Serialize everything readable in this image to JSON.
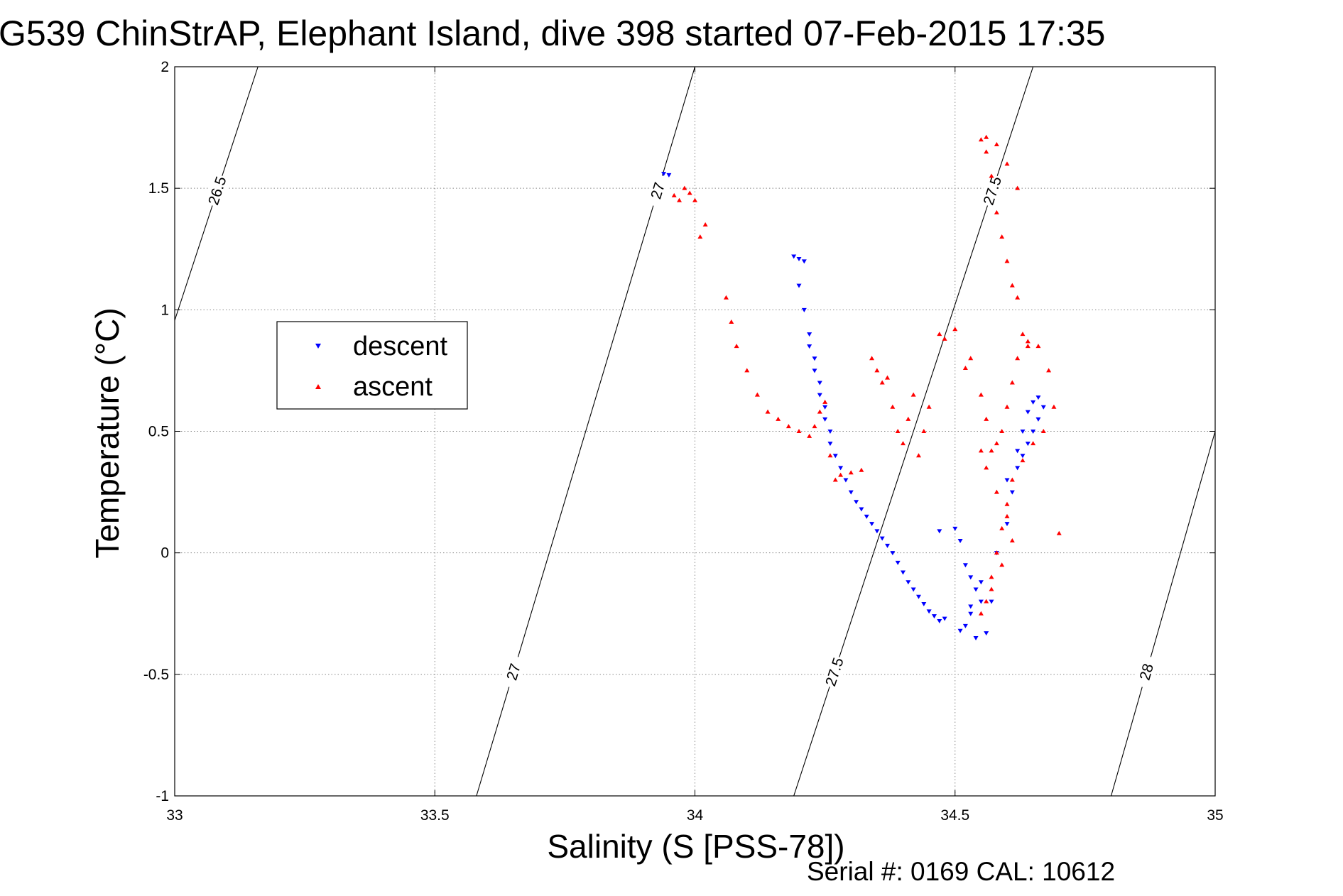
{
  "title": "G539 ChinStrAP, Elephant Island, dive 398 started 07-Feb-2015 17:35",
  "footer": "Serial #: 0169 CAL: 10612",
  "chart_data": {
    "type": "scatter",
    "title": "G539 ChinStrAP, Elephant Island, dive 398 started 07-Feb-2015 17:35",
    "xlabel": "Salinity (S [PSS-78])",
    "ylabel": "Temperature (°C)",
    "xlim": [
      33,
      35
    ],
    "ylim": [
      -1,
      2
    ],
    "xticks": [
      33,
      33.5,
      34,
      34.5,
      35
    ],
    "yticks": [
      -1,
      -0.5,
      0,
      0.5,
      1,
      1.5,
      2
    ],
    "xtick_labels": [
      "33",
      "33.5",
      "34",
      "34.5",
      "35"
    ],
    "ytick_labels": [
      "-1",
      "-0.5",
      "0",
      "0.5",
      "1",
      "1.5",
      "2"
    ],
    "grid": true,
    "legend_position": "left",
    "legend": [
      "descent",
      "ascent"
    ],
    "series": [
      {
        "name": "descent",
        "marker": "triangle-down",
        "color": "#0000ff",
        "x": [
          33.94,
          33.95,
          34.19,
          34.2,
          34.21,
          34.2,
          34.21,
          34.22,
          34.22,
          34.23,
          34.23,
          34.24,
          34.24,
          34.25,
          34.25,
          34.26,
          34.26,
          34.27,
          34.28,
          34.29,
          34.3,
          34.31,
          34.32,
          34.33,
          34.34,
          34.35,
          34.36,
          34.37,
          34.38,
          34.39,
          34.4,
          34.41,
          34.42,
          34.43,
          34.44,
          34.45,
          34.46,
          34.47,
          34.48,
          34.47,
          34.5,
          34.51,
          34.52,
          34.53,
          34.54,
          34.55,
          34.53,
          34.52,
          34.54,
          34.56,
          34.51,
          34.53,
          34.55,
          34.57,
          34.58,
          34.6,
          34.61,
          34.62,
          34.63,
          34.64,
          34.65,
          34.66,
          34.67,
          34.66,
          34.65,
          34.64,
          34.63,
          34.62,
          34.6
        ],
        "y": [
          1.56,
          1.555,
          1.22,
          1.21,
          1.2,
          1.1,
          1.0,
          0.9,
          0.85,
          0.8,
          0.75,
          0.7,
          0.65,
          0.6,
          0.55,
          0.5,
          0.45,
          0.4,
          0.35,
          0.3,
          0.25,
          0.21,
          0.18,
          0.15,
          0.12,
          0.09,
          0.06,
          0.03,
          0.0,
          -0.04,
          -0.08,
          -0.12,
          -0.15,
          -0.18,
          -0.21,
          -0.24,
          -0.26,
          -0.28,
          -0.27,
          0.09,
          0.1,
          0.05,
          -0.05,
          -0.1,
          -0.15,
          -0.2,
          -0.25,
          -0.3,
          -0.35,
          -0.33,
          -0.32,
          -0.22,
          -0.12,
          -0.2,
          0.0,
          0.12,
          0.25,
          0.35,
          0.4,
          0.45,
          0.5,
          0.55,
          0.6,
          0.64,
          0.62,
          0.58,
          0.5,
          0.42,
          0.3
        ]
      },
      {
        "name": "ascent",
        "marker": "triangle-up",
        "color": "#ff0000",
        "x": [
          33.98,
          33.99,
          34.0,
          33.97,
          33.96,
          34.02,
          34.01,
          34.06,
          34.07,
          34.08,
          34.1,
          34.12,
          34.14,
          34.16,
          34.18,
          34.2,
          34.22,
          34.23,
          34.24,
          34.25,
          34.26,
          34.27,
          34.28,
          34.3,
          34.32,
          34.34,
          34.35,
          34.36,
          34.37,
          34.38,
          34.39,
          34.4,
          34.41,
          34.42,
          34.43,
          34.44,
          34.45,
          34.47,
          34.48,
          34.5,
          34.52,
          34.53,
          34.55,
          34.56,
          34.57,
          34.58,
          34.59,
          34.6,
          34.61,
          34.62,
          34.63,
          34.64,
          34.62,
          34.61,
          34.6,
          34.59,
          34.58,
          34.57,
          34.56,
          34.55,
          34.56,
          34.58,
          34.6,
          34.62,
          34.64,
          34.66,
          34.68,
          34.69,
          34.67,
          34.65,
          34.63,
          34.61,
          34.6,
          34.59,
          34.58,
          34.57,
          34.56,
          34.55,
          34.57,
          34.59,
          34.61,
          34.6,
          34.58,
          34.56,
          34.55,
          34.7
        ],
        "y": [
          1.5,
          1.48,
          1.45,
          1.45,
          1.47,
          1.35,
          1.3,
          1.05,
          0.95,
          0.85,
          0.75,
          0.65,
          0.58,
          0.55,
          0.52,
          0.5,
          0.48,
          0.52,
          0.58,
          0.62,
          0.4,
          0.3,
          0.32,
          0.33,
          0.34,
          0.8,
          0.75,
          0.7,
          0.72,
          0.6,
          0.5,
          0.45,
          0.55,
          0.65,
          0.4,
          0.5,
          0.6,
          0.9,
          0.88,
          0.92,
          0.76,
          0.8,
          0.65,
          0.55,
          0.42,
          0.45,
          0.5,
          0.6,
          0.7,
          0.8,
          0.9,
          0.85,
          1.05,
          1.1,
          1.2,
          1.3,
          1.4,
          1.55,
          1.65,
          1.7,
          1.71,
          1.68,
          1.6,
          1.5,
          0.87,
          0.85,
          0.75,
          0.6,
          0.5,
          0.45,
          0.38,
          0.3,
          0.2,
          0.1,
          0.0,
          -0.1,
          -0.2,
          -0.25,
          -0.15,
          -0.05,
          0.05,
          0.15,
          0.25,
          0.35,
          0.42,
          0.08
        ]
      }
    ],
    "contours": [
      {
        "label": "26.5",
        "x": [
          32.7,
          33.16
        ],
        "y": [
          -1,
          2
        ]
      },
      {
        "label": "27",
        "x": [
          33.58,
          34.0
        ],
        "y": [
          -1,
          2
        ]
      },
      {
        "label": "27.5",
        "x": [
          34.19,
          34.65
        ],
        "y": [
          -1,
          2
        ]
      },
      {
        "label": "28",
        "x": [
          34.8,
          35.2
        ],
        "y": [
          -1,
          2
        ]
      }
    ]
  }
}
